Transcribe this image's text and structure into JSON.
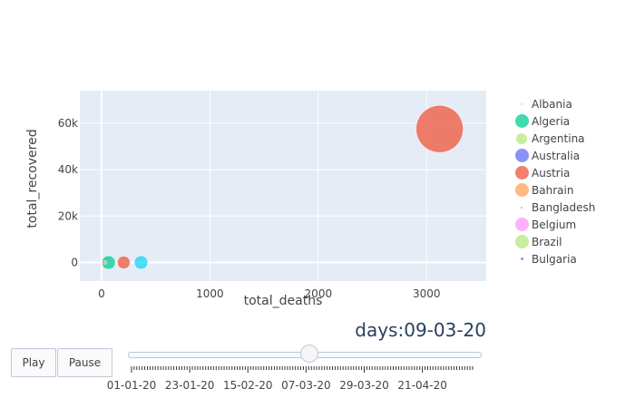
{
  "chart_data": {
    "type": "scatter",
    "xlabel": "total_deaths",
    "ylabel": "total_recovered",
    "xlim": [
      -200,
      3550
    ],
    "ylim": [
      -8000,
      74000
    ],
    "xticks": [
      0,
      1000,
      2000,
      3000
    ],
    "xtick_labels": [
      "0",
      "1000",
      "2000",
      "3000"
    ],
    "yticks": [
      0,
      20000,
      40000,
      60000
    ],
    "ytick_labels": [
      "0",
      "20k",
      "40k",
      "60k"
    ],
    "points": [
      {
        "x": 3120,
        "y": 57500,
        "size": 26,
        "color": "#EF553B"
      },
      {
        "x": 365,
        "y": 0,
        "size": 7.5,
        "color": "#19D3F3"
      },
      {
        "x": 205,
        "y": 0,
        "size": 7,
        "color": "#EF553B"
      },
      {
        "x": 65,
        "y": 0,
        "size": 7.5,
        "color": "#00CC96"
      },
      {
        "x": 32,
        "y": 0,
        "size": 2,
        "color": "#FFA15A"
      },
      {
        "x": 18,
        "y": 0,
        "size": 1.5,
        "color": "#FF6692"
      }
    ],
    "legend": [
      {
        "name": "Albania",
        "color": "#FF97FF",
        "size": 1
      },
      {
        "name": "Algeria",
        "color": "#00CC96",
        "size": 7.5
      },
      {
        "name": "Argentina",
        "color": "#B6E880",
        "size": 6
      },
      {
        "name": "Australia",
        "color": "#636EFA",
        "size": 7.5
      },
      {
        "name": "Austria",
        "color": "#EF553B",
        "size": 7.5
      },
      {
        "name": "Bahrain",
        "color": "#FFA15A",
        "size": 7.5
      },
      {
        "name": "Bangladesh",
        "color": "#19D3F3",
        "size": 1
      },
      {
        "name": "Belgium",
        "color": "#FF97FF",
        "size": 7.5
      },
      {
        "name": "Brazil",
        "color": "#B6E880",
        "size": 7.5
      },
      {
        "name": "Bulgaria",
        "color": "#636EFA",
        "size": 1.5
      }
    ]
  },
  "animation": {
    "play_label": "Play",
    "pause_label": "Pause",
    "slider_prefix": "days:",
    "current_value": "09-03-20",
    "current_fraction": 0.52,
    "tick_labels": [
      "01-01-20",
      "23-01-20",
      "15-02-20",
      "07-03-20",
      "29-03-20",
      "21-04-20"
    ],
    "step_count": 130
  }
}
